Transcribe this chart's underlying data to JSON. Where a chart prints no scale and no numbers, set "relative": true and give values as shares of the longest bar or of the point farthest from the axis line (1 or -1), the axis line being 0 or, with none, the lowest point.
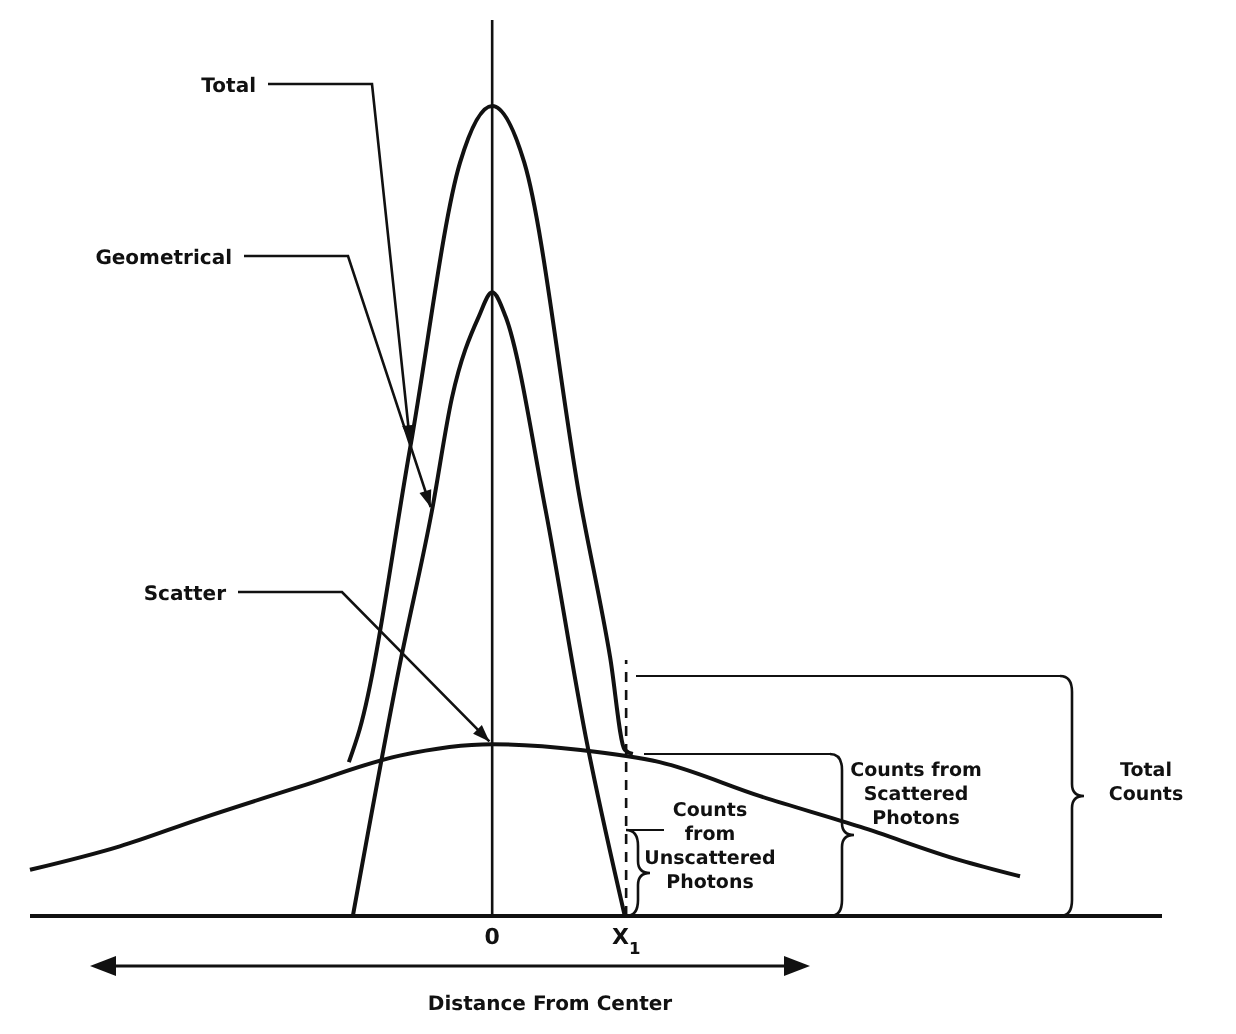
{
  "chart_data": {
    "type": "line",
    "relative": true,
    "xlabel": "Distance From Center",
    "xlim": [
      -3.45,
      5
    ],
    "xticks": [
      0,
      {
        "value": 1,
        "label": "X$_{1}$"
      }
    ],
    "legend": false,
    "grid": false,
    "marker": "none",
    "line_style": "solid",
    "series": [
      {
        "name": "Total",
        "color": "#111111",
        "x": [
          -1.07,
          -0.99,
          -0.61,
          -0.24,
          0,
          0.24,
          0.66,
          0.88,
          0.99,
          1.05
        ],
        "values": [
          0.19,
          0.23,
          0.58,
          0.93,
          1,
          0.93,
          0.51,
          0.32,
          0.205,
          0.2
        ]
      },
      {
        "name": "Geometrical",
        "color": "#111111",
        "x": [
          -1.04,
          -0.69,
          -0.45,
          -0.3,
          -0.1,
          0,
          0.1,
          0.4,
          0.7,
          0.99
        ],
        "values": [
          0,
          0.31,
          0.5,
          0.64,
          0.74,
          0.77,
          0.74,
          0.5,
          0.22,
          0
        ]
      },
      {
        "name": "Scatter",
        "color": "#111111",
        "x": [
          -3.45,
          -2.78,
          -2.18,
          -1.43,
          -0.69,
          0,
          0.66,
          1.25,
          2.0,
          2.75,
          3.49,
          3.94
        ],
        "values": [
          0.057,
          0.086,
          0.12,
          0.16,
          0.198,
          0.212,
          0.205,
          0.19,
          0.148,
          0.11,
          0.069,
          0.049
        ]
      }
    ],
    "ref_lines": [
      {
        "axis": "x",
        "value": 0,
        "line_style": "solid"
      },
      {
        "axis": "x",
        "value": 1,
        "line_style": "dashed"
      }
    ],
    "annotations": [
      "Counts from Unscattered Photons",
      "Counts from Scattered Photons",
      "Total Counts"
    ]
  }
}
